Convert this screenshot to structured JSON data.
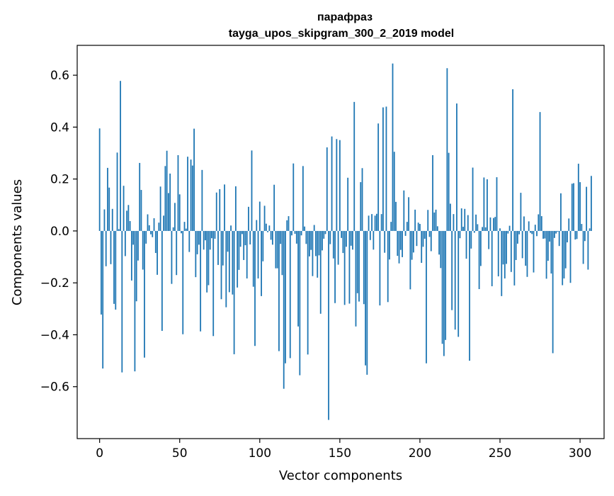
{
  "chart_data": {
    "type": "bar",
    "title": "парафраз",
    "subtitle": "tayga_upos_skipgram_300_2_2019 model",
    "xlabel": "Vector components",
    "ylabel": "Components values",
    "xlim": [
      -14,
      315
    ],
    "ylim": [
      -0.8,
      0.715
    ],
    "xticks": [
      0,
      50,
      100,
      150,
      200,
      250,
      300
    ],
    "xtick_labels": [
      "0",
      "50",
      "100",
      "150",
      "200",
      "250",
      "300"
    ],
    "yticks": [
      -0.6,
      -0.4,
      -0.2,
      0.0,
      0.2,
      0.4,
      0.6
    ],
    "ytick_labels": [
      "−0.6",
      "−0.4",
      "−0.2",
      "0.0",
      "0.2",
      "0.4",
      "0.6"
    ],
    "grid": false,
    "legend": "none",
    "bar_color": "#1f77b4",
    "values": [
      0.395,
      -0.322,
      -0.53,
      0.083,
      -0.136,
      0.243,
      0.167,
      -0.128,
      0.085,
      -0.281,
      -0.303,
      0.302,
      0.007,
      0.578,
      -0.545,
      0.174,
      -0.097,
      0.078,
      0.1,
      0.038,
      -0.191,
      -0.053,
      -0.541,
      -0.271,
      -0.114,
      0.262,
      0.158,
      -0.149,
      -0.488,
      -0.049,
      0.064,
      0.022,
      -0.013,
      -0.024,
      0.049,
      -0.085,
      -0.169,
      0.032,
      0.171,
      -0.385,
      0.059,
      0.25,
      0.309,
      0.146,
      0.221,
      -0.204,
      0.014,
      0.108,
      -0.17,
      0.292,
      0.141,
      -0.009,
      -0.398,
      0.035,
      0.009,
      0.286,
      -0.081,
      0.275,
      0.252,
      0.394,
      -0.178,
      -0.09,
      -0.053,
      -0.387,
      0.235,
      -0.072,
      -0.036,
      -0.237,
      -0.209,
      -0.072,
      -0.028,
      -0.405,
      -0.03,
      0.148,
      -0.131,
      0.161,
      -0.263,
      -0.133,
      0.179,
      -0.294,
      -0.08,
      -0.236,
      0.021,
      -0.245,
      -0.475,
      0.172,
      -0.218,
      -0.15,
      -0.061,
      -0.012,
      -0.112,
      -0.055,
      -0.183,
      0.093,
      -0.052,
      0.31,
      -0.215,
      -0.443,
      0.042,
      -0.183,
      0.113,
      -0.251,
      -0.117,
      0.097,
      0.028,
      -0.005,
      0.021,
      -0.034,
      -0.053,
      0.178,
      -0.144,
      -0.144,
      -0.463,
      -0.05,
      -0.17,
      -0.608,
      -0.51,
      0.041,
      0.057,
      -0.49,
      -0.017,
      0.26,
      -0.011,
      -0.049,
      -0.368,
      -0.556,
      -0.017,
      0.25,
      0.017,
      -0.05,
      -0.476,
      -0.098,
      -0.073,
      -0.174,
      0.023,
      -0.097,
      -0.18,
      -0.094,
      -0.319,
      -0.075,
      -0.03,
      -0.012,
      0.322,
      -0.728,
      -0.051,
      0.364,
      -0.106,
      -0.278,
      0.354,
      -0.13,
      0.35,
      -0.027,
      -0.085,
      -0.285,
      -0.061,
      0.205,
      -0.28,
      -0.057,
      -0.072,
      0.497,
      -0.368,
      -0.24,
      -0.272,
      0.188,
      0.242,
      -0.282,
      -0.518,
      -0.554,
      0.059,
      -0.035,
      0.065,
      -0.072,
      0.059,
      0.066,
      0.414,
      -0.287,
      0.065,
      0.476,
      -0.084,
      0.479,
      -0.274,
      -0.11,
      0.035,
      0.645,
      0.305,
      0.112,
      -0.096,
      -0.125,
      -0.073,
      -0.101,
      0.156,
      -0.019,
      0.035,
      0.13,
      -0.225,
      -0.111,
      -0.083,
      0.082,
      -0.058,
      0.032,
      0.027,
      -0.123,
      -0.061,
      -0.03,
      -0.51,
      0.081,
      -0.023,
      -0.078,
      0.292,
      0.071,
      0.082,
      0.018,
      -0.091,
      -0.143,
      -0.435,
      -0.482,
      -0.42,
      0.627,
      0.301,
      0.105,
      -0.305,
      0.065,
      -0.38,
      0.491,
      -0.408,
      -0.028,
      0.087,
      0.016,
      0.085,
      -0.107,
      0.061,
      -0.5,
      -0.068,
      0.244,
      -0.007,
      0.063,
      0.026,
      -0.224,
      -0.135,
      0.015,
      0.206,
      0.014,
      0.199,
      -0.07,
      0.052,
      -0.213,
      0.05,
      0.054,
      0.207,
      -0.175,
      0.01,
      -0.251,
      -0.129,
      -0.183,
      -0.127,
      -0.01,
      0.02,
      -0.158,
      0.546,
      -0.21,
      -0.112,
      -0.049,
      -0.013,
      0.147,
      -0.105,
      0.056,
      -0.134,
      -0.177,
      0.037,
      -0.007,
      -0.012,
      -0.16,
      0.024,
      -0.02,
      0.064,
      0.458,
      0.057,
      -0.03,
      -0.029,
      -0.184,
      -0.115,
      -0.041,
      -0.164,
      -0.471,
      -0.027,
      -0.01,
      -0.003,
      -0.058,
      0.145,
      -0.209,
      -0.183,
      -0.144,
      -0.044,
      0.048,
      -0.2,
      0.182,
      0.184,
      -0.033,
      -0.031,
      0.259,
      0.188,
      0.027,
      -0.127,
      -0.039,
      0.17,
      -0.149,
      0.01,
      0.212
    ]
  }
}
